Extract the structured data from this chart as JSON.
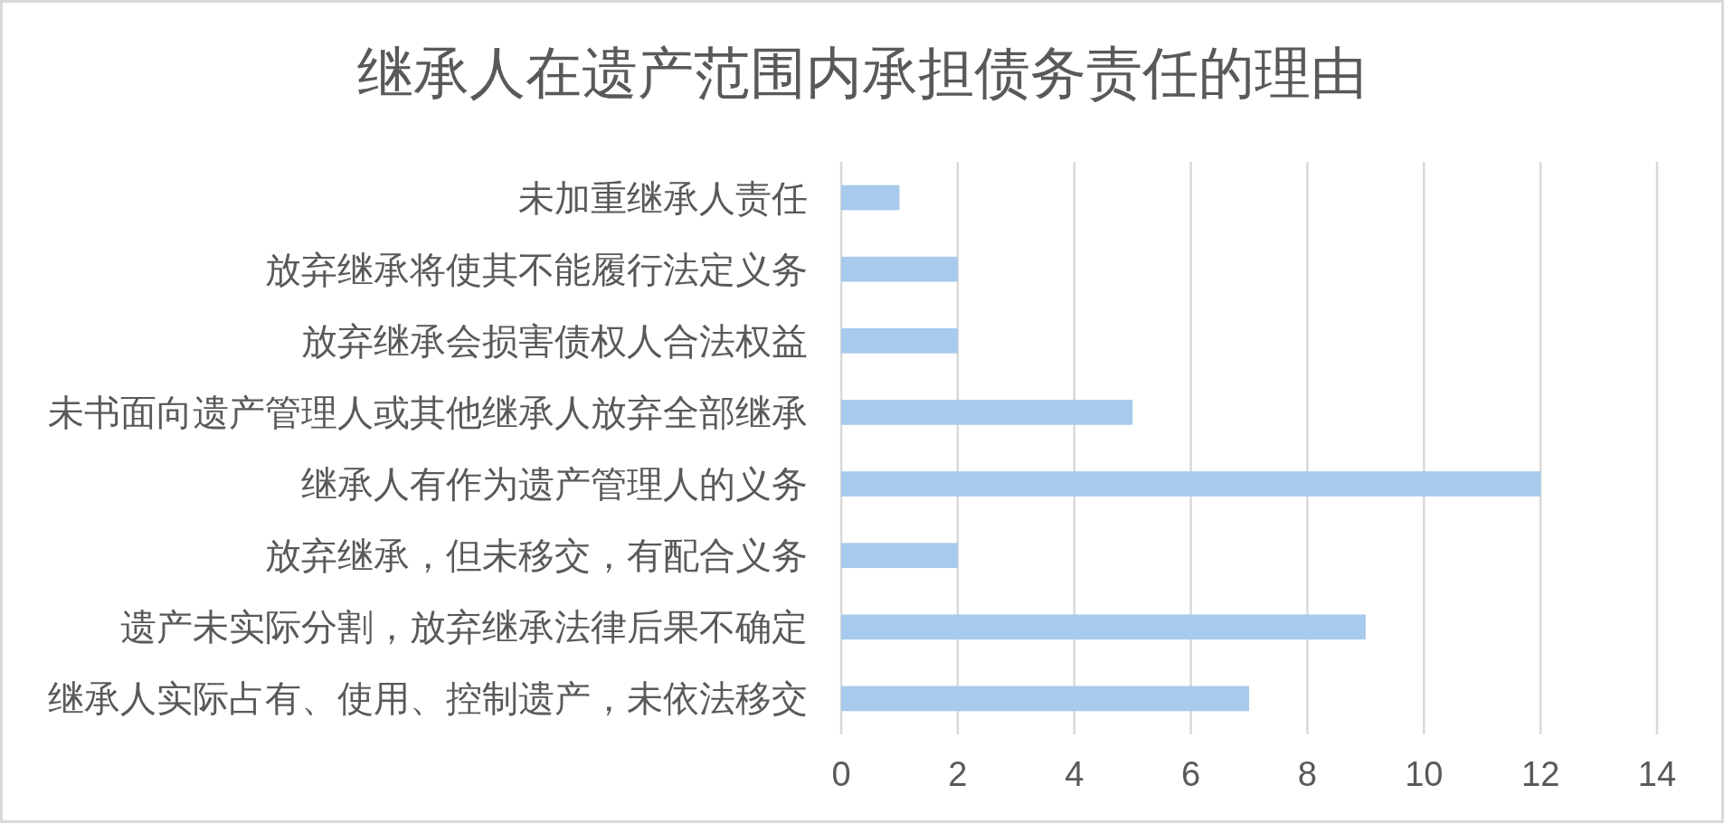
{
  "chart_data": {
    "type": "bar",
    "orientation": "horizontal",
    "title": "继承人在遗产范围内承担债务责任的理由",
    "categories": [
      "未加重继承人责任",
      "放弃继承将使其不能履行法定义务",
      "放弃继承会损害债权人合法权益",
      "未书面向遗产管理人或其他继承人放弃全部继承",
      "继承人有作为遗产管理人的义务",
      "放弃继承，但未移交，有配合义务",
      "遗产未实际分割，放弃继承法律后果不确定",
      "继承人实际占有、使用、控制遗产，未依法移交"
    ],
    "values": [
      1,
      2,
      2,
      5,
      12,
      2,
      9,
      7
    ],
    "color": "#a7caed",
    "xlim": [
      0,
      14
    ],
    "xticks": [
      0,
      2,
      4,
      6,
      8,
      10,
      12,
      14
    ],
    "grid": "x"
  }
}
